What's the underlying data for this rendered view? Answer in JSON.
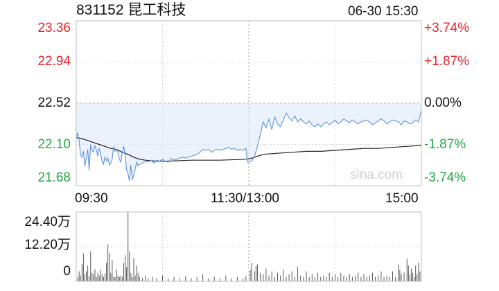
{
  "header": {
    "code_name": "831152 昆工科技",
    "datetime": "06-30 15:30"
  },
  "watermark": "sina.com",
  "colors": {
    "price_line": "#5d93dc",
    "avg_line": "#222222",
    "up": "#e8242a",
    "down": "#22a744",
    "flat": "#111111",
    "area": "#dbe8f8"
  },
  "chart_data": [
    {
      "type": "line",
      "title": "",
      "xlabel": "",
      "ylabel": "",
      "x_ticks": [
        "09:30",
        "11:30/13:00",
        "15:00"
      ],
      "y_ticks_left": [
        "23.36",
        "22.94",
        "22.52",
        "22.10",
        "21.68"
      ],
      "y_ticks_right": [
        "+3.74%",
        "+1.87%",
        "0.00%",
        "-1.87%",
        "-3.74%"
      ],
      "ylim": [
        21.68,
        23.36
      ],
      "reference_price": 22.52,
      "grid": true,
      "series": [
        {
          "role": "price",
          "points": [
            [
              0,
              22.17
            ],
            [
              1,
              22.22
            ],
            [
              2,
              22.13
            ],
            [
              3,
              21.99
            ],
            [
              4,
              21.97
            ],
            [
              5,
              22.03
            ],
            [
              6,
              21.88
            ],
            [
              7,
              21.96
            ],
            [
              8,
              22.05
            ],
            [
              9,
              21.84
            ],
            [
              10,
              22.1
            ],
            [
              11,
              22.04
            ],
            [
              12,
              22.02
            ],
            [
              13,
              22.09
            ],
            [
              14,
              22.04
            ],
            [
              15,
              21.98
            ],
            [
              16,
              22.06
            ],
            [
              17,
              22.0
            ],
            [
              18,
              21.93
            ],
            [
              19,
              21.9
            ],
            [
              20,
              21.97
            ],
            [
              21,
              21.93
            ],
            [
              22,
              21.96
            ],
            [
              23,
              21.89
            ],
            [
              24,
              21.91
            ],
            [
              25,
              21.95
            ],
            [
              26,
              22.08
            ],
            [
              27,
              22.03
            ],
            [
              28,
              22.05
            ],
            [
              29,
              22.02
            ],
            [
              30,
              21.95
            ],
            [
              31,
              21.92
            ],
            [
              32,
              22.02
            ],
            [
              33,
              22.08
            ],
            [
              34,
              21.99
            ],
            [
              35,
              21.84
            ],
            [
              36,
              21.8
            ],
            [
              37,
              21.73
            ],
            [
              38,
              21.89
            ],
            [
              39,
              21.74
            ],
            [
              40,
              21.79
            ],
            [
              41,
              21.85
            ],
            [
              42,
              21.92
            ],
            [
              43,
              21.88
            ],
            [
              44,
              21.9
            ],
            [
              45,
              21.9
            ],
            [
              46,
              21.91
            ],
            [
              47,
              21.92
            ],
            [
              48,
              21.92
            ],
            [
              49,
              21.93
            ],
            [
              50,
              21.92
            ],
            [
              52,
              21.94
            ],
            [
              54,
              21.91
            ],
            [
              56,
              21.94
            ],
            [
              58,
              21.93
            ],
            [
              60,
              21.95
            ],
            [
              62,
              21.93
            ],
            [
              64,
              21.92
            ],
            [
              66,
              21.96
            ],
            [
              68,
              21.94
            ],
            [
              70,
              21.95
            ],
            [
              72,
              21.96
            ],
            [
              74,
              21.97
            ],
            [
              76,
              21.96
            ],
            [
              78,
              21.97
            ],
            [
              80,
              21.98
            ],
            [
              82,
              21.99
            ],
            [
              84,
              22.0
            ],
            [
              86,
              22.02
            ],
            [
              88,
              22.05
            ],
            [
              90,
              22.04
            ],
            [
              92,
              22.05
            ],
            [
              94,
              22.02
            ],
            [
              96,
              22.04
            ],
            [
              98,
              22.05
            ],
            [
              100,
              22.04
            ],
            [
              102,
              22.05
            ],
            [
              104,
              22.06
            ],
            [
              106,
              22.07
            ],
            [
              108,
              22.05
            ],
            [
              110,
              22.06
            ],
            [
              112,
              22.04
            ],
            [
              114,
              22.05
            ],
            [
              116,
              22.04
            ],
            [
              118,
              22.06
            ],
            [
              119,
              21.92
            ],
            [
              120,
              21.92
            ],
            [
              122,
              21.93
            ],
            [
              124,
              21.98
            ],
            [
              126,
              22.08
            ],
            [
              128,
              22.2
            ],
            [
              130,
              22.33
            ],
            [
              132,
              22.27
            ],
            [
              134,
              22.36
            ],
            [
              136,
              22.25
            ],
            [
              138,
              22.38
            ],
            [
              140,
              22.31
            ],
            [
              142,
              22.28
            ],
            [
              144,
              22.35
            ],
            [
              146,
              22.42
            ],
            [
              148,
              22.37
            ],
            [
              150,
              22.34
            ],
            [
              152,
              22.39
            ],
            [
              154,
              22.33
            ],
            [
              156,
              22.36
            ],
            [
              158,
              22.33
            ],
            [
              160,
              22.31
            ],
            [
              162,
              22.34
            ],
            [
              164,
              22.3
            ],
            [
              166,
              22.28
            ],
            [
              168,
              22.31
            ],
            [
              170,
              22.28
            ],
            [
              172,
              22.31
            ],
            [
              174,
              22.33
            ],
            [
              176,
              22.3
            ],
            [
              178,
              22.32
            ],
            [
              180,
              22.35
            ],
            [
              182,
              22.31
            ],
            [
              184,
              22.33
            ],
            [
              186,
              22.36
            ],
            [
              188,
              22.34
            ],
            [
              190,
              22.32
            ],
            [
              192,
              22.35
            ],
            [
              194,
              22.33
            ],
            [
              196,
              22.31
            ],
            [
              198,
              22.33
            ],
            [
              200,
              22.34
            ],
            [
              202,
              22.35
            ],
            [
              204,
              22.33
            ],
            [
              206,
              22.3
            ],
            [
              208,
              22.32
            ],
            [
              210,
              22.34
            ],
            [
              212,
              22.36
            ],
            [
              214,
              22.34
            ],
            [
              216,
              22.31
            ],
            [
              218,
              22.33
            ],
            [
              220,
              22.35
            ],
            [
              222,
              22.34
            ],
            [
              224,
              22.33
            ],
            [
              226,
              22.3
            ],
            [
              228,
              22.34
            ],
            [
              230,
              22.33
            ],
            [
              232,
              22.31
            ],
            [
              234,
              22.32
            ],
            [
              236,
              22.35
            ],
            [
              238,
              22.33
            ],
            [
              240,
              22.45
            ]
          ]
        },
        {
          "role": "average",
          "points": [
            [
              0,
              22.17
            ],
            [
              4,
              22.16
            ],
            [
              8,
              22.14
            ],
            [
              12,
              22.12
            ],
            [
              16,
              22.1
            ],
            [
              20,
              22.08
            ],
            [
              24,
              22.06
            ],
            [
              28,
              22.05
            ],
            [
              32,
              22.02
            ],
            [
              36,
              22.0
            ],
            [
              40,
              21.97
            ],
            [
              44,
              21.95
            ],
            [
              48,
              21.94
            ],
            [
              56,
              21.93
            ],
            [
              64,
              21.93
            ],
            [
              80,
              21.94
            ],
            [
              100,
              21.94
            ],
            [
              118,
              21.95
            ],
            [
              122,
              21.96
            ],
            [
              126,
              21.98
            ],
            [
              130,
              22.0
            ],
            [
              140,
              22.01
            ],
            [
              150,
              22.02
            ],
            [
              160,
              22.03
            ],
            [
              170,
              22.03
            ],
            [
              180,
              22.04
            ],
            [
              190,
              22.05
            ],
            [
              200,
              22.06
            ],
            [
              210,
              22.06
            ],
            [
              220,
              22.07
            ],
            [
              230,
              22.08
            ],
            [
              240,
              22.09
            ]
          ]
        }
      ]
    },
    {
      "type": "bar",
      "title": "",
      "xlabel": "",
      "ylabel": "",
      "y_ticks": [
        "24.40万",
        "12.20万",
        "0"
      ],
      "ylim": [
        0,
        24.4
      ],
      "unit": "万",
      "grid": true,
      "bars": [
        [
          1,
          1.5
        ],
        [
          2,
          3.5
        ],
        [
          3,
          2.0
        ],
        [
          4,
          6.0
        ],
        [
          5,
          9.8
        ],
        [
          6,
          2.5
        ],
        [
          7,
          3.5
        ],
        [
          8,
          5.5
        ],
        [
          9,
          1.8
        ],
        [
          10,
          10.5
        ],
        [
          11,
          3.0
        ],
        [
          12,
          2.5
        ],
        [
          13,
          4.2
        ],
        [
          14,
          1.5
        ],
        [
          15,
          3.0
        ],
        [
          16,
          2.0
        ],
        [
          17,
          4.0
        ],
        [
          18,
          2.5
        ],
        [
          19,
          1.5
        ],
        [
          20,
          2.8
        ],
        [
          21,
          6.5
        ],
        [
          22,
          13.0
        ],
        [
          23,
          10.0
        ],
        [
          24,
          3.0
        ],
        [
          25,
          7.5
        ],
        [
          26,
          1.5
        ],
        [
          27,
          1.5
        ],
        [
          28,
          4.2
        ],
        [
          29,
          2.0
        ],
        [
          30,
          1.5
        ],
        [
          31,
          2.0
        ],
        [
          32,
          1.5
        ],
        [
          33,
          6.5
        ],
        [
          34,
          9.2
        ],
        [
          35,
          5.0
        ],
        [
          36,
          24.4
        ],
        [
          37,
          10.5
        ],
        [
          38,
          3.0
        ],
        [
          39,
          1.5
        ],
        [
          40,
          8.2
        ],
        [
          41,
          2.0
        ],
        [
          42,
          5.5
        ],
        [
          43,
          3.0
        ],
        [
          44,
          1.5
        ],
        [
          46,
          1.2
        ],
        [
          48,
          2.0
        ],
        [
          50,
          1.0
        ],
        [
          53,
          1.5
        ],
        [
          56,
          1.0
        ],
        [
          60,
          2.0
        ],
        [
          64,
          1.0
        ],
        [
          68,
          1.5
        ],
        [
          72,
          1.0
        ],
        [
          76,
          1.8
        ],
        [
          80,
          1.0
        ],
        [
          84,
          1.5
        ],
        [
          88,
          2.5
        ],
        [
          92,
          1.0
        ],
        [
          96,
          1.5
        ],
        [
          100,
          1.0
        ],
        [
          104,
          2.0
        ],
        [
          108,
          1.0
        ],
        [
          112,
          1.5
        ],
        [
          116,
          1.0
        ],
        [
          118,
          1.8
        ],
        [
          121,
          4.0
        ],
        [
          122,
          6.5
        ],
        [
          124,
          3.5
        ],
        [
          125,
          5.5
        ],
        [
          126,
          6.0
        ],
        [
          128,
          3.0
        ],
        [
          130,
          2.5
        ],
        [
          132,
          4.5
        ],
        [
          134,
          2.0
        ],
        [
          136,
          3.5
        ],
        [
          138,
          1.5
        ],
        [
          140,
          3.0
        ],
        [
          142,
          2.0
        ],
        [
          144,
          4.0
        ],
        [
          146,
          1.5
        ],
        [
          148,
          2.5
        ],
        [
          150,
          3.5
        ],
        [
          152,
          1.5
        ],
        [
          154,
          5.0
        ],
        [
          156,
          2.0
        ],
        [
          158,
          1.5
        ],
        [
          160,
          3.5
        ],
        [
          162,
          1.5
        ],
        [
          164,
          2.5
        ],
        [
          166,
          1.5
        ],
        [
          168,
          3.0
        ],
        [
          170,
          1.5
        ],
        [
          172,
          2.0
        ],
        [
          174,
          1.5
        ],
        [
          176,
          3.0
        ],
        [
          178,
          1.5
        ],
        [
          180,
          2.5
        ],
        [
          182,
          1.5
        ],
        [
          184,
          3.0
        ],
        [
          186,
          2.0
        ],
        [
          188,
          1.5
        ],
        [
          190,
          2.5
        ],
        [
          192,
          1.5
        ],
        [
          194,
          2.0
        ],
        [
          196,
          3.0
        ],
        [
          198,
          1.5
        ],
        [
          200,
          2.5
        ],
        [
          202,
          1.5
        ],
        [
          204,
          2.0
        ],
        [
          206,
          3.0
        ],
        [
          208,
          1.5
        ],
        [
          210,
          2.0
        ],
        [
          212,
          3.5
        ],
        [
          214,
          1.5
        ],
        [
          216,
          2.0
        ],
        [
          218,
          1.5
        ],
        [
          220,
          3.5
        ],
        [
          222,
          1.5
        ],
        [
          224,
          6.0
        ],
        [
          225,
          4.0
        ],
        [
          226,
          2.5
        ],
        [
          228,
          3.0
        ],
        [
          230,
          8.0
        ],
        [
          231,
          5.5
        ],
        [
          232,
          2.5
        ],
        [
          233,
          4.5
        ],
        [
          234,
          3.0
        ],
        [
          235,
          1.5
        ],
        [
          236,
          5.5
        ],
        [
          237,
          2.5
        ],
        [
          238,
          6.5
        ],
        [
          239,
          3.5
        ],
        [
          240,
          12.2
        ]
      ]
    }
  ]
}
